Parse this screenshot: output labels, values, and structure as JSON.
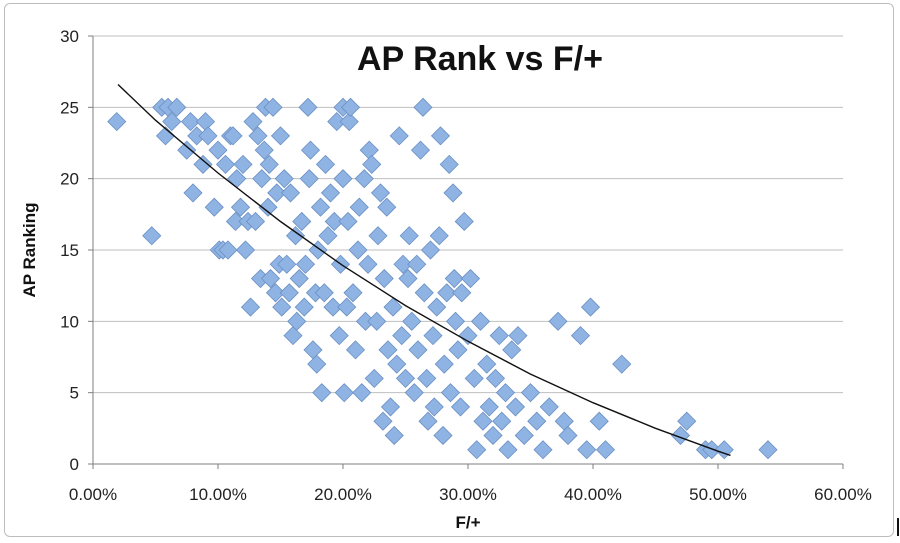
{
  "chart_data": {
    "type": "scatter",
    "title": "AP Rank vs F/+",
    "xlabel": "F/+",
    "ylabel": "AP Ranking",
    "xlim": [
      0,
      0.6
    ],
    "ylim": [
      0,
      30
    ],
    "x_ticks": [
      0,
      0.1,
      0.2,
      0.3,
      0.4,
      0.5,
      0.6
    ],
    "x_tick_labels": [
      "0.00%",
      "10.00%",
      "20.00%",
      "30.00%",
      "40.00%",
      "50.00%",
      "60.00%"
    ],
    "y_ticks": [
      0,
      5,
      10,
      15,
      20,
      25,
      30
    ],
    "y_tick_labels": [
      "0",
      "5",
      "10",
      "15",
      "20",
      "25",
      "30"
    ],
    "grid": true,
    "marker": "diamond",
    "marker_color": "#8fb4e3",
    "trendline": {
      "type": "polynomial",
      "color": "#111111",
      "points": [
        [
          0.02,
          26.6
        ],
        [
          0.05,
          24.1
        ],
        [
          0.1,
          20.4
        ],
        [
          0.15,
          17.0
        ],
        [
          0.2,
          13.9
        ],
        [
          0.25,
          11.1
        ],
        [
          0.3,
          8.6
        ],
        [
          0.35,
          6.3
        ],
        [
          0.4,
          4.3
        ],
        [
          0.45,
          2.5
        ],
        [
          0.5,
          0.9
        ],
        [
          0.51,
          0.6
        ]
      ]
    },
    "points": [
      [
        0.019,
        24
      ],
      [
        0.047,
        16
      ],
      [
        0.055,
        25
      ],
      [
        0.058,
        23
      ],
      [
        0.06,
        25
      ],
      [
        0.063,
        24
      ],
      [
        0.067,
        25
      ],
      [
        0.075,
        22
      ],
      [
        0.078,
        24
      ],
      [
        0.08,
        19
      ],
      [
        0.083,
        23
      ],
      [
        0.088,
        21
      ],
      [
        0.09,
        24
      ],
      [
        0.092,
        23
      ],
      [
        0.097,
        18
      ],
      [
        0.1,
        22
      ],
      [
        0.101,
        15
      ],
      [
        0.104,
        15
      ],
      [
        0.106,
        21
      ],
      [
        0.108,
        15
      ],
      [
        0.11,
        23
      ],
      [
        0.112,
        23
      ],
      [
        0.114,
        17
      ],
      [
        0.115,
        20
      ],
      [
        0.118,
        18
      ],
      [
        0.12,
        21
      ],
      [
        0.122,
        15
      ],
      [
        0.124,
        17
      ],
      [
        0.126,
        11
      ],
      [
        0.128,
        24
      ],
      [
        0.13,
        17
      ],
      [
        0.132,
        23
      ],
      [
        0.134,
        13
      ],
      [
        0.135,
        20
      ],
      [
        0.137,
        22
      ],
      [
        0.138,
        25
      ],
      [
        0.14,
        18
      ],
      [
        0.141,
        21
      ],
      [
        0.142,
        13
      ],
      [
        0.144,
        25
      ],
      [
        0.146,
        12
      ],
      [
        0.147,
        19
      ],
      [
        0.149,
        14
      ],
      [
        0.15,
        23
      ],
      [
        0.151,
        11
      ],
      [
        0.153,
        20
      ],
      [
        0.155,
        14
      ],
      [
        0.157,
        12
      ],
      [
        0.158,
        19
      ],
      [
        0.16,
        9
      ],
      [
        0.162,
        16
      ],
      [
        0.163,
        10
      ],
      [
        0.165,
        13
      ],
      [
        0.167,
        17
      ],
      [
        0.169,
        11
      ],
      [
        0.17,
        14
      ],
      [
        0.172,
        25
      ],
      [
        0.173,
        20
      ],
      [
        0.174,
        22
      ],
      [
        0.176,
        8
      ],
      [
        0.178,
        12
      ],
      [
        0.179,
        7
      ],
      [
        0.18,
        15
      ],
      [
        0.182,
        18
      ],
      [
        0.183,
        5
      ],
      [
        0.185,
        12
      ],
      [
        0.186,
        21
      ],
      [
        0.188,
        16
      ],
      [
        0.19,
        19
      ],
      [
        0.192,
        11
      ],
      [
        0.193,
        17
      ],
      [
        0.195,
        24
      ],
      [
        0.197,
        9
      ],
      [
        0.198,
        14
      ],
      [
        0.2,
        25
      ],
      [
        0.2,
        20
      ],
      [
        0.201,
        5
      ],
      [
        0.203,
        11
      ],
      [
        0.204,
        17
      ],
      [
        0.205,
        24
      ],
      [
        0.206,
        25
      ],
      [
        0.208,
        12
      ],
      [
        0.21,
        8
      ],
      [
        0.212,
        15
      ],
      [
        0.213,
        18
      ],
      [
        0.215,
        5
      ],
      [
        0.217,
        20
      ],
      [
        0.218,
        10
      ],
      [
        0.22,
        14
      ],
      [
        0.221,
        22
      ],
      [
        0.223,
        21
      ],
      [
        0.225,
        6
      ],
      [
        0.227,
        10
      ],
      [
        0.228,
        16
      ],
      [
        0.23,
        19
      ],
      [
        0.232,
        3
      ],
      [
        0.233,
        13
      ],
      [
        0.235,
        18
      ],
      [
        0.236,
        8
      ],
      [
        0.238,
        4
      ],
      [
        0.24,
        11
      ],
      [
        0.241,
        2
      ],
      [
        0.243,
        7
      ],
      [
        0.245,
        23
      ],
      [
        0.247,
        9
      ],
      [
        0.248,
        14
      ],
      [
        0.25,
        6
      ],
      [
        0.252,
        13
      ],
      [
        0.253,
        16
      ],
      [
        0.255,
        10
      ],
      [
        0.257,
        5
      ],
      [
        0.259,
        14
      ],
      [
        0.26,
        8
      ],
      [
        0.262,
        22
      ],
      [
        0.264,
        25
      ],
      [
        0.265,
        12
      ],
      [
        0.267,
        6
      ],
      [
        0.268,
        3
      ],
      [
        0.27,
        15
      ],
      [
        0.272,
        9
      ],
      [
        0.273,
        4
      ],
      [
        0.275,
        11
      ],
      [
        0.277,
        16
      ],
      [
        0.278,
        23
      ],
      [
        0.28,
        2
      ],
      [
        0.281,
        7
      ],
      [
        0.283,
        12
      ],
      [
        0.285,
        21
      ],
      [
        0.286,
        5
      ],
      [
        0.288,
        19
      ],
      [
        0.289,
        13
      ],
      [
        0.29,
        10
      ],
      [
        0.292,
        8
      ],
      [
        0.294,
        4
      ],
      [
        0.295,
        12
      ],
      [
        0.297,
        17
      ],
      [
        0.3,
        9
      ],
      [
        0.302,
        13
      ],
      [
        0.305,
        6
      ],
      [
        0.307,
        1
      ],
      [
        0.31,
        10
      ],
      [
        0.312,
        3
      ],
      [
        0.315,
        7
      ],
      [
        0.317,
        4
      ],
      [
        0.32,
        2
      ],
      [
        0.322,
        6
      ],
      [
        0.325,
        9
      ],
      [
        0.327,
        3
      ],
      [
        0.33,
        5
      ],
      [
        0.332,
        1
      ],
      [
        0.335,
        8
      ],
      [
        0.338,
        4
      ],
      [
        0.34,
        9
      ],
      [
        0.345,
        2
      ],
      [
        0.35,
        5
      ],
      [
        0.355,
        3
      ],
      [
        0.36,
        1
      ],
      [
        0.365,
        4
      ],
      [
        0.372,
        10
      ],
      [
        0.377,
        3
      ],
      [
        0.38,
        2
      ],
      [
        0.39,
        9
      ],
      [
        0.395,
        1
      ],
      [
        0.398,
        11
      ],
      [
        0.405,
        3
      ],
      [
        0.41,
        1
      ],
      [
        0.423,
        7
      ],
      [
        0.47,
        2
      ],
      [
        0.475,
        3
      ],
      [
        0.49,
        1
      ],
      [
        0.495,
        1
      ],
      [
        0.505,
        1
      ],
      [
        0.54,
        1
      ]
    ]
  }
}
